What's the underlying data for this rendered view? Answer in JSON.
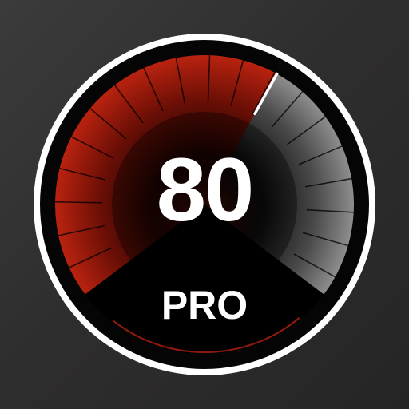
{
  "app_icon": {
    "speed_value": "80",
    "badge_label": "PRO",
    "icon_name": "speedometer-icon",
    "colors": {
      "background": "#2f2e2e",
      "ring": "#ffffff",
      "accent_red": "#b01e10",
      "needle": "#ffffff"
    }
  }
}
